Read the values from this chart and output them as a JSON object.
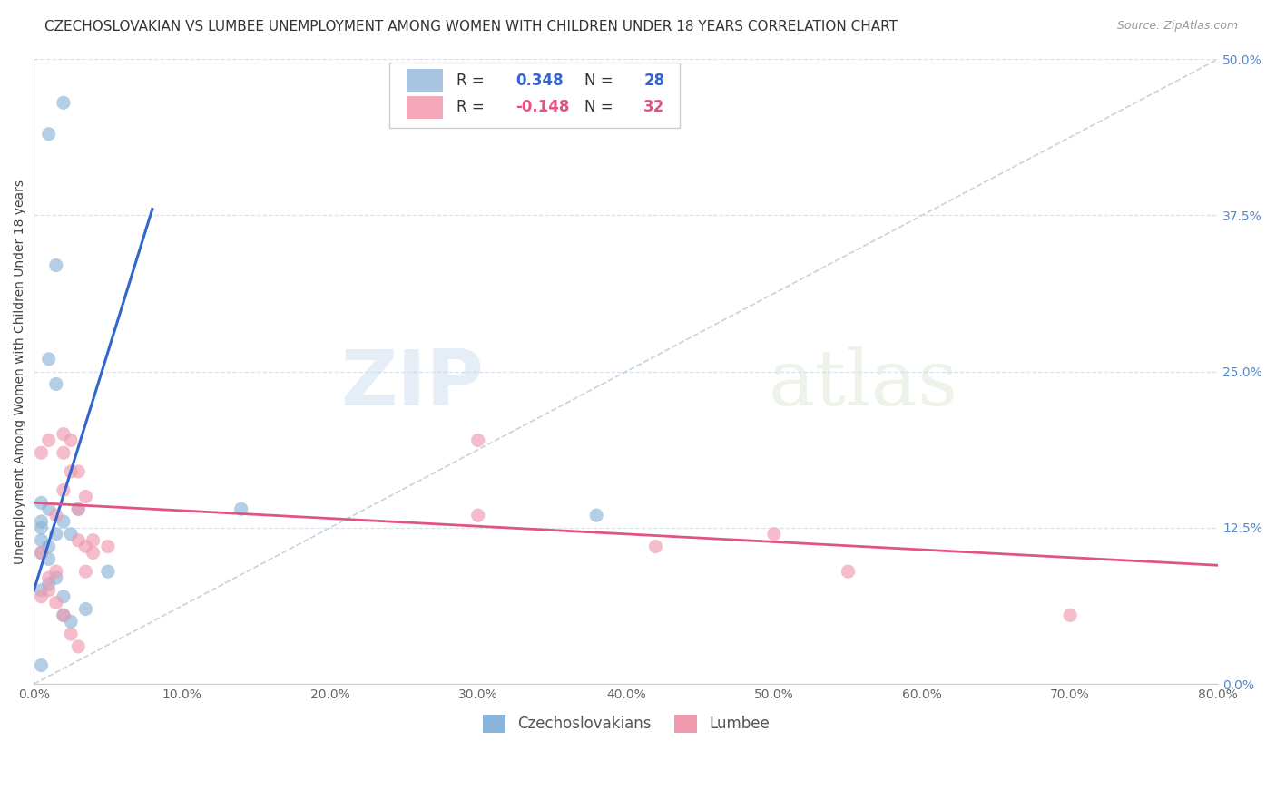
{
  "title": "CZECHOSLOVAKIAN VS LUMBEE UNEMPLOYMENT AMONG WOMEN WITH CHILDREN UNDER 18 YEARS CORRELATION CHART",
  "source": "Source: ZipAtlas.com",
  "ylabel": "Unemployment Among Women with Children Under 18 years",
  "xlabel_ticks": [
    0.0,
    10.0,
    20.0,
    30.0,
    40.0,
    50.0,
    60.0,
    70.0,
    80.0
  ],
  "ylabel_right_ticks": [
    0.0,
    12.5,
    25.0,
    37.5,
    50.0
  ],
  "xlim": [
    0.0,
    80.0
  ],
  "ylim": [
    0.0,
    50.0
  ],
  "watermark_zip": "ZIP",
  "watermark_atlas": "atlas",
  "legend_bottom": [
    "Czechoslovakians",
    "Lumbee"
  ],
  "blue_scatter": [
    [
      0.5,
      1.5
    ],
    [
      1.0,
      44.0
    ],
    [
      2.0,
      46.5
    ],
    [
      1.5,
      33.5
    ],
    [
      1.0,
      26.0
    ],
    [
      1.5,
      24.0
    ],
    [
      0.5,
      14.5
    ],
    [
      1.0,
      14.0
    ],
    [
      0.5,
      13.0
    ],
    [
      0.5,
      12.5
    ],
    [
      0.5,
      11.5
    ],
    [
      0.5,
      10.5
    ],
    [
      1.0,
      11.0
    ],
    [
      1.0,
      10.0
    ],
    [
      1.5,
      12.0
    ],
    [
      2.0,
      13.0
    ],
    [
      2.5,
      12.0
    ],
    [
      3.0,
      14.0
    ],
    [
      0.5,
      7.5
    ],
    [
      1.0,
      8.0
    ],
    [
      1.5,
      8.5
    ],
    [
      2.0,
      7.0
    ],
    [
      2.0,
      5.5
    ],
    [
      2.5,
      5.0
    ],
    [
      3.5,
      6.0
    ],
    [
      14.0,
      14.0
    ],
    [
      38.0,
      13.5
    ],
    [
      5.0,
      9.0
    ]
  ],
  "pink_scatter": [
    [
      0.5,
      18.5
    ],
    [
      1.0,
      19.5
    ],
    [
      0.5,
      10.5
    ],
    [
      1.0,
      8.5
    ],
    [
      1.5,
      13.5
    ],
    [
      1.5,
      9.0
    ],
    [
      2.0,
      20.0
    ],
    [
      2.0,
      18.5
    ],
    [
      2.5,
      19.5
    ],
    [
      2.5,
      17.0
    ],
    [
      2.0,
      15.5
    ],
    [
      3.0,
      17.0
    ],
    [
      3.5,
      15.0
    ],
    [
      3.0,
      14.0
    ],
    [
      3.0,
      11.5
    ],
    [
      3.5,
      11.0
    ],
    [
      3.5,
      9.0
    ],
    [
      4.0,
      11.5
    ],
    [
      4.0,
      10.5
    ],
    [
      5.0,
      11.0
    ],
    [
      0.5,
      7.0
    ],
    [
      1.0,
      7.5
    ],
    [
      1.5,
      6.5
    ],
    [
      2.0,
      5.5
    ],
    [
      2.5,
      4.0
    ],
    [
      3.0,
      3.0
    ],
    [
      30.0,
      19.5
    ],
    [
      30.0,
      13.5
    ],
    [
      42.0,
      11.0
    ],
    [
      55.0,
      9.0
    ],
    [
      70.0,
      5.5
    ],
    [
      50.0,
      12.0
    ]
  ],
  "blue_line": [
    [
      0.0,
      7.5
    ],
    [
      8.0,
      38.0
    ]
  ],
  "pink_line": [
    [
      0.0,
      14.5
    ],
    [
      80.0,
      9.5
    ]
  ],
  "diag_line": [
    [
      0.0,
      0.0
    ],
    [
      80.0,
      50.0
    ]
  ],
  "blue_color": "#8ab4d8",
  "pink_color": "#f09ab0",
  "blue_line_color": "#3366cc",
  "pink_line_color": "#e05580",
  "diag_line_color": "#b8c8d8",
  "grid_color": "#d0dae8",
  "background_color": "#ffffff",
  "title_fontsize": 11,
  "axis_label_fontsize": 10,
  "tick_fontsize": 10,
  "scatter_size": 120,
  "r_blue": "0.348",
  "r_pink": "-0.148",
  "n_blue": "28",
  "n_pink": "32",
  "leg_box_color": "#a8c4e0",
  "leg_box_pink": "#f4a7b9"
}
